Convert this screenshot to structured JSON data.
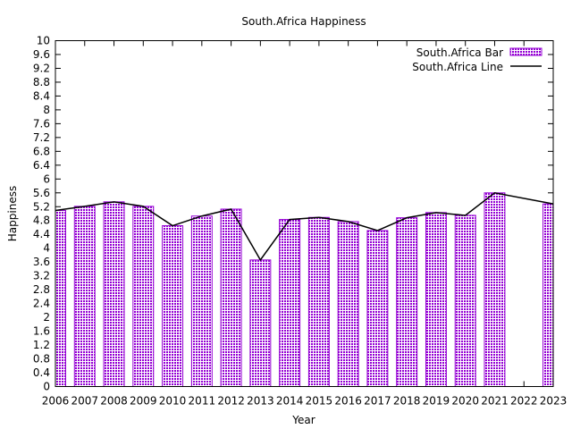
{
  "chart_data": {
    "type": "bar",
    "title": "South.Africa Happiness",
    "xlabel": "Year",
    "ylabel": "Happiness",
    "ylim": [
      0,
      10
    ],
    "xlim": [
      2006,
      2023
    ],
    "yticks": [
      "0",
      "0.4",
      "0.8",
      "1.2",
      "1.6",
      "2",
      "2.4",
      "2.8",
      "3.2",
      "3.6",
      "4",
      "4.4",
      "4.8",
      "5.2",
      "5.6",
      "6",
      "6.4",
      "6.8",
      "7.2",
      "7.6",
      "8",
      "8.4",
      "8.8",
      "9.2",
      "9.6",
      "10"
    ],
    "xticks": [
      "2006",
      "2007",
      "2008",
      "2009",
      "2010",
      "2011",
      "2012",
      "2013",
      "2014",
      "2015",
      "2016",
      "2017",
      "2018",
      "2019",
      "2020",
      "2021",
      "2022",
      "2023"
    ],
    "legend_position": "top-right",
    "series": [
      {
        "name": "South.Africa Bar",
        "kind": "bar",
        "color": "#9400d3",
        "x": [
          2006,
          2007,
          2008,
          2009,
          2010,
          2011,
          2012,
          2013,
          2014,
          2015,
          2016,
          2017,
          2018,
          2019,
          2020,
          2021,
          2023
        ],
        "y": [
          5.09,
          5.21,
          5.34,
          5.21,
          4.65,
          4.93,
          5.13,
          3.66,
          4.83,
          4.89,
          4.77,
          4.51,
          4.88,
          5.03,
          4.95,
          5.6,
          5.28
        ]
      },
      {
        "name": "South.Africa Line",
        "kind": "line",
        "color": "#000000",
        "x": [
          2006,
          2007,
          2008,
          2009,
          2010,
          2011,
          2012,
          2013,
          2014,
          2015,
          2016,
          2017,
          2018,
          2019,
          2020,
          2021,
          2023
        ],
        "y": [
          5.09,
          5.21,
          5.34,
          5.21,
          4.65,
          4.93,
          5.13,
          3.66,
          4.83,
          4.89,
          4.77,
          4.51,
          4.88,
          5.03,
          4.95,
          5.6,
          5.28
        ]
      }
    ]
  }
}
